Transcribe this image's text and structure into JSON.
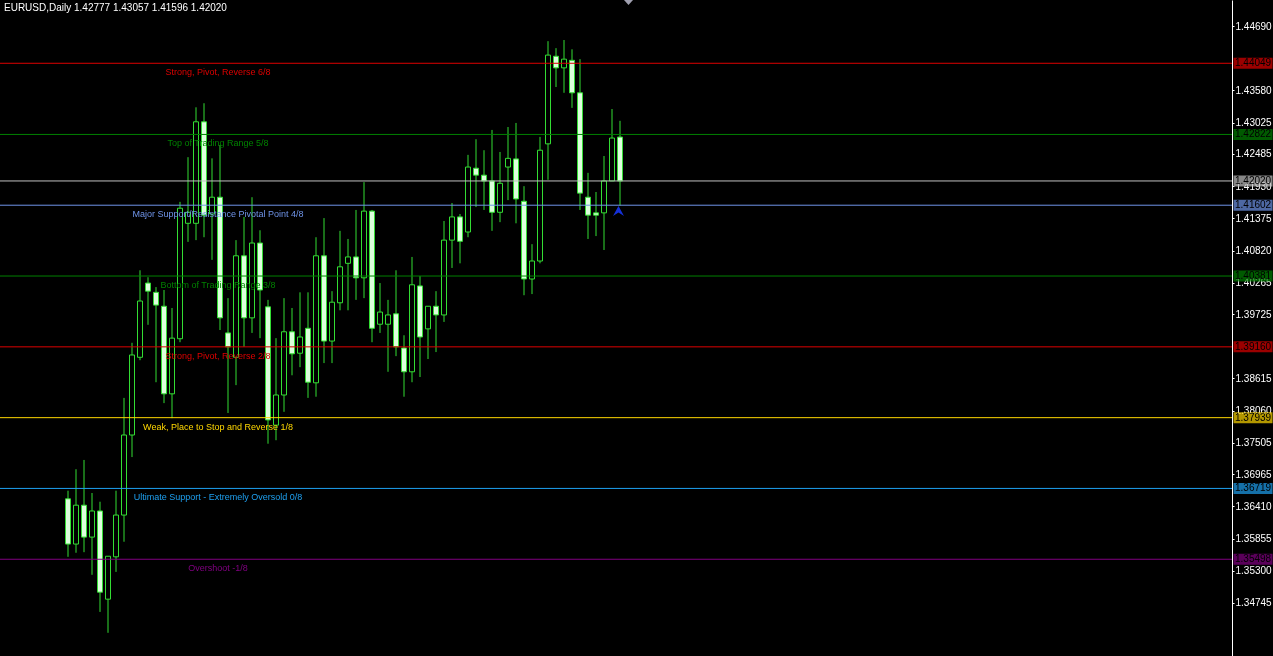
{
  "chart_data": {
    "type": "candlestick",
    "title": "EURUSD,Daily  1.42777 1.43057 1.41596 1.42020",
    "color": "#33dd33",
    "tick_labels": "y",
    "categories": [
      null,
      null,
      null,
      null,
      null,
      null,
      null,
      null,
      null,
      null,
      null,
      null,
      null,
      null,
      null,
      null,
      null,
      null,
      null,
      null,
      null,
      null,
      null,
      null,
      null,
      null,
      null,
      null,
      null,
      null,
      null,
      null,
      null,
      null,
      null,
      null,
      null,
      null,
      null,
      null,
      null,
      null,
      null,
      null,
      null,
      null,
      null,
      null,
      null,
      null,
      null,
      null,
      null,
      null,
      null,
      null,
      null,
      null,
      null,
      null,
      null,
      null,
      null,
      null,
      null,
      null,
      null,
      null,
      null,
      null,
      null,
      null,
      null,
      null,
      null,
      null,
      null,
      null,
      null,
      null,
      null,
      null,
      null,
      null,
      null,
      null,
      null,
      null,
      null,
      null,
      null,
      null,
      null,
      null,
      null,
      null,
      null,
      null,
      null,
      null,
      null,
      null,
      null,
      null,
      null,
      null,
      null,
      null,
      null,
      null,
      null,
      null,
      null,
      null,
      null,
      null,
      null,
      null,
      null,
      null,
      null,
      null,
      null,
      null,
      null,
      null,
      null,
      null,
      null,
      null,
      null,
      null,
      null,
      null,
      null,
      null,
      null,
      null,
      null,
      null,
      null,
      null,
      null,
      null,
      null,
      null,
      null,
      null,
      null,
      null,
      null,
      null,
      null,
      null
    ],
    "ohlc": [
      null,
      null,
      null,
      null,
      null,
      null,
      null,
      null,
      [
        1.3654,
        1.3668,
        1.3554,
        1.3576
      ],
      [
        1.3576,
        1.3705,
        1.3561,
        1.3643
      ],
      [
        1.3643,
        1.3721,
        1.3562,
        1.3588
      ],
      [
        1.3588,
        1.3664,
        1.3523,
        1.3633
      ],
      [
        1.3633,
        1.3649,
        1.3459,
        1.3493
      ],
      [
        1.3481,
        1.3555,
        1.3423,
        1.3555
      ],
      [
        1.3554,
        1.3668,
        1.3528,
        1.3626
      ],
      [
        1.3626,
        1.3828,
        1.358,
        1.3764
      ],
      [
        1.3764,
        1.3923,
        1.3726,
        1.3902
      ],
      [
        1.3898,
        1.4048,
        1.3893,
        1.3995
      ],
      [
        1.4026,
        1.4036,
        1.3954,
        1.4012
      ],
      [
        1.401,
        1.4019,
        1.3855,
        1.3988
      ],
      [
        1.3986,
        1.4014,
        1.3819,
        1.3835
      ],
      [
        1.3835,
        1.3983,
        1.3793,
        1.3931
      ],
      [
        1.393,
        1.4166,
        1.3924,
        1.4155
      ],
      [
        1.4129,
        1.4243,
        1.4097,
        1.4148
      ],
      [
        1.4129,
        1.4329,
        1.41,
        1.4304
      ],
      [
        1.4304,
        1.4336,
        1.4105,
        1.4143
      ],
      [
        1.4145,
        1.4241,
        1.4066,
        1.4174
      ],
      [
        1.4174,
        1.4264,
        1.3945,
        1.3966
      ],
      [
        1.394,
        1.4,
        1.3802,
        1.3916
      ],
      [
        1.3898,
        1.41,
        1.385,
        1.4073
      ],
      [
        1.4073,
        1.414,
        1.3916,
        1.3966
      ],
      [
        1.3966,
        1.4174,
        1.394,
        1.4095
      ],
      [
        1.4095,
        1.4117,
        1.3931,
        1.4014
      ],
      [
        1.3985,
        1.3997,
        1.3749,
        1.379
      ],
      [
        1.3781,
        1.3931,
        1.3755,
        1.3833
      ],
      [
        1.3833,
        1.4,
        1.3804,
        1.3942
      ],
      [
        1.3942,
        1.3983,
        1.3867,
        1.3904
      ],
      [
        1.3905,
        1.401,
        1.3881,
        1.3933
      ],
      [
        1.3948,
        1.401,
        1.3828,
        1.3855
      ],
      [
        1.3854,
        1.4105,
        1.383,
        1.4073
      ],
      [
        1.4073,
        1.4138,
        1.3888,
        1.3926
      ],
      [
        1.3926,
        1.4012,
        1.3888,
        1.3993
      ],
      [
        1.3992,
        1.4116,
        1.3979,
        1.4054
      ],
      [
        1.406,
        1.4102,
        1.3979,
        1.4071
      ],
      [
        1.4071,
        1.4152,
        1.3997,
        1.4035
      ],
      [
        1.4035,
        1.42,
        1.4,
        1.415
      ],
      [
        1.415,
        1.4152,
        1.3924,
        1.3948
      ],
      [
        1.3955,
        1.4026,
        1.394,
        1.3976
      ],
      [
        1.3955,
        1.3997,
        1.3873,
        1.3971
      ],
      [
        1.3973,
        1.4048,
        1.39,
        1.3916
      ],
      [
        1.3914,
        1.3936,
        1.383,
        1.3873
      ],
      [
        1.3873,
        1.4071,
        1.3855,
        1.4023
      ],
      [
        1.4021,
        1.4038,
        1.3864,
        1.3933
      ],
      [
        1.3947,
        1.3986,
        1.3895,
        1.3986
      ],
      [
        1.3986,
        1.4012,
        1.3907,
        1.3971
      ],
      [
        1.3971,
        1.4133,
        1.3959,
        1.41
      ],
      [
        1.41,
        1.4164,
        1.4052,
        1.414
      ],
      [
        1.414,
        1.4145,
        1.406,
        1.4098
      ],
      [
        1.4114,
        1.4247,
        1.4105,
        1.4226
      ],
      [
        1.4224,
        1.4274,
        1.4157,
        1.4212
      ],
      [
        1.4212,
        1.4255,
        1.4152,
        1.4202
      ],
      [
        1.4202,
        1.429,
        1.4116,
        1.4148
      ],
      [
        1.4148,
        1.4252,
        1.4131,
        1.4198
      ],
      [
        1.4226,
        1.4295,
        1.4169,
        1.4241
      ],
      [
        1.424,
        1.4302,
        1.4129,
        1.4171
      ],
      [
        1.4167,
        1.4193,
        1.4005,
        1.4033
      ],
      [
        1.4033,
        1.4093,
        1.4007,
        1.4064
      ],
      [
        1.4064,
        1.4278,
        1.406,
        1.4255
      ],
      [
        1.4266,
        1.4443,
        1.4204,
        1.4419
      ],
      [
        1.4417,
        1.4431,
        1.4364,
        1.4397
      ],
      [
        1.4397,
        1.4445,
        1.4354,
        1.4412
      ],
      [
        1.441,
        1.4429,
        1.4328,
        1.4354
      ],
      [
        1.4354,
        1.4412,
        1.4152,
        1.4181
      ],
      [
        1.4174,
        1.4216,
        1.4102,
        1.4143
      ],
      [
        1.4147,
        1.4183,
        1.4107,
        1.4143
      ],
      [
        1.4147,
        1.4245,
        1.4083,
        1.4202
      ],
      [
        1.4202,
        1.4326,
        1.4202,
        1.4276
      ],
      [
        1.42777,
        1.43057,
        1.41596,
        1.4202
      ],
      null,
      null,
      null,
      null,
      null,
      null,
      null,
      null,
      null,
      null,
      null,
      null,
      null,
      null,
      null,
      null,
      null,
      null,
      null,
      null,
      null,
      null,
      null,
      null,
      null,
      null,
      null,
      null,
      null,
      null,
      null,
      null,
      null,
      null,
      null,
      null,
      null,
      null,
      null,
      null,
      null,
      null,
      null,
      null,
      null,
      null,
      null,
      null,
      null,
      null,
      null,
      null,
      null,
      null,
      null,
      null,
      null,
      null,
      null,
      null,
      null,
      null,
      null,
      null,
      null,
      null,
      null,
      null,
      null,
      null,
      null,
      null,
      null,
      null,
      null,
      null
    ],
    "ylim": [
      1.3383,
      1.4514
    ],
    "yticks": [
      {
        "value": 1.4469,
        "label": "1.44690"
      },
      {
        "value": 1.4358,
        "label": "1.43580"
      },
      1.43025,
      1.42485,
      {
        "value": 1.4193,
        "label": "1.41930"
      },
      1.41375,
      {
        "value": 1.4082,
        "label": "1.40820"
      },
      1.40265,
      1.39725,
      1.38615,
      {
        "value": 1.3806,
        "label": "1.38060"
      },
      1.37505,
      1.36965,
      {
        "value": 1.3641,
        "label": "1.36410"
      },
      1.35855,
      {
        "value": 1.353,
        "label": "1.35300"
      },
      1.34745
    ],
    "annotations": [
      "1.44049",
      "1.42822",
      "1.42020",
      "1.41602",
      "1.40381",
      "1.39160",
      "1.37939",
      "1.36719",
      "1.35498"
    ],
    "ref_lines": [
      {
        "axis": "y",
        "value": 1.44049,
        "label": "Strong, Pivot, Reverse  6/8",
        "color": "#dd0000"
      },
      {
        "axis": "y",
        "value": 1.42822,
        "label": "Top of Trading Range  5/8",
        "color": "#008000"
      },
      {
        "axis": "y",
        "value": 1.4202,
        "label": null,
        "color": "#c0c0c0"
      },
      {
        "axis": "y",
        "value": 1.41602,
        "label": "Major Support/Resistance Pivotal Point  4/8",
        "color": "#6f94e8"
      },
      {
        "axis": "y",
        "value": 1.40381,
        "label": "Bottom of Trading Range  3/8",
        "color": "#008000"
      },
      {
        "axis": "y",
        "value": 1.3916,
        "label": "Strong, Pivot, Reverse  2/8",
        "color": "#dd0000"
      },
      {
        "axis": "y",
        "value": 1.37939,
        "label": "Weak, Place to Stop and Reverse  1/8",
        "color": "#ffd700"
      },
      {
        "axis": "y",
        "value": 1.36719,
        "label": "Ultimate Support - Extremely Oversold  0/8",
        "color": "#1ea0f0"
      },
      {
        "axis": "y",
        "value": 1.35498,
        "label": "Overshoot  -1/8",
        "color": "#800080"
      }
    ]
  }
}
